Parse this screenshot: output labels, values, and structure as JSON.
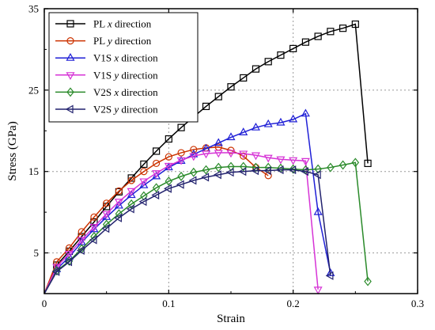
{
  "chart_data": {
    "type": "line",
    "xlabel": "Strain",
    "ylabel": "Stress (GPa)",
    "xlim": [
      0,
      0.3
    ],
    "ylim": [
      0,
      35
    ],
    "xticks": [
      0,
      0.1,
      0.2,
      0.3
    ],
    "xtick_labels": [
      "0",
      "0.1",
      "0.2",
      "0.3"
    ],
    "yticks": [
      5,
      15,
      25,
      35
    ],
    "ytick_labels": [
      "5",
      "15",
      "25",
      "35"
    ],
    "grid": "dotted",
    "grid_x": [
      0.1,
      0.2
    ],
    "grid_y": [
      5,
      15,
      25
    ],
    "legend_position": "top-left",
    "series": [
      {
        "name": "PL x direction",
        "name_parts": [
          "PL ",
          "x",
          " direction"
        ],
        "color": "#000000",
        "marker": "square",
        "x": [
          0,
          0.01,
          0.02,
          0.03,
          0.04,
          0.05,
          0.06,
          0.07,
          0.08,
          0.09,
          0.1,
          0.11,
          0.12,
          0.13,
          0.14,
          0.15,
          0.16,
          0.17,
          0.18,
          0.19,
          0.2,
          0.21,
          0.22,
          0.23,
          0.24,
          0.25,
          0.26
        ],
        "y": [
          0,
          3.5,
          5.2,
          7.0,
          8.8,
          10.7,
          12.5,
          14.2,
          15.9,
          17.5,
          19.0,
          20.4,
          21.7,
          23.0,
          24.2,
          25.4,
          26.5,
          27.6,
          28.5,
          29.3,
          30.1,
          30.9,
          31.6,
          32.2,
          32.6,
          33.1,
          16.0
        ]
      },
      {
        "name": "PL y direction",
        "name_parts": [
          "PL ",
          "y",
          " direction"
        ],
        "color": "#cc3300",
        "marker": "circle",
        "x": [
          0,
          0.01,
          0.02,
          0.03,
          0.04,
          0.05,
          0.06,
          0.07,
          0.08,
          0.09,
          0.1,
          0.11,
          0.12,
          0.13,
          0.14,
          0.15,
          0.16,
          0.17,
          0.18
        ],
        "y": [
          0,
          3.9,
          5.6,
          7.6,
          9.4,
          11.1,
          12.6,
          13.9,
          15.0,
          16.0,
          16.8,
          17.3,
          17.7,
          17.9,
          18.0,
          17.6,
          16.9,
          15.5,
          14.5
        ]
      },
      {
        "name": "V1S x direction",
        "name_parts": [
          "V1S ",
          "x",
          " direction"
        ],
        "color": "#1f1fd6",
        "marker": "triangle-up",
        "x": [
          0,
          0.01,
          0.02,
          0.03,
          0.04,
          0.05,
          0.06,
          0.07,
          0.08,
          0.09,
          0.1,
          0.11,
          0.12,
          0.13,
          0.14,
          0.15,
          0.16,
          0.17,
          0.18,
          0.19,
          0.2,
          0.21,
          0.22,
          0.23
        ],
        "y": [
          0,
          3.0,
          4.5,
          6.3,
          7.9,
          9.4,
          10.8,
          12.1,
          13.3,
          14.4,
          15.5,
          16.3,
          17.1,
          17.8,
          18.5,
          19.2,
          19.8,
          20.4,
          20.8,
          21.0,
          21.4,
          22.1,
          10.0,
          2.5
        ]
      },
      {
        "name": "V1S y direction",
        "name_parts": [
          "V1S ",
          "y",
          " direction"
        ],
        "color": "#d633d6",
        "marker": "triangle-down",
        "x": [
          0,
          0.01,
          0.02,
          0.03,
          0.04,
          0.05,
          0.06,
          0.07,
          0.08,
          0.09,
          0.1,
          0.11,
          0.12,
          0.13,
          0.14,
          0.15,
          0.16,
          0.17,
          0.18,
          0.19,
          0.2,
          0.21,
          0.22
        ],
        "y": [
          0,
          3.3,
          4.9,
          6.6,
          8.2,
          9.8,
          11.3,
          12.6,
          13.8,
          14.8,
          15.7,
          16.4,
          16.9,
          17.2,
          17.3,
          17.3,
          17.2,
          17.0,
          16.7,
          16.5,
          16.4,
          16.3,
          0.5
        ]
      },
      {
        "name": "V2S x direction",
        "name_parts": [
          "V2S ",
          "x",
          " direction"
        ],
        "color": "#2a8a2a",
        "marker": "diamond",
        "x": [
          0,
          0.01,
          0.02,
          0.03,
          0.04,
          0.05,
          0.06,
          0.07,
          0.08,
          0.09,
          0.1,
          0.11,
          0.12,
          0.13,
          0.14,
          0.15,
          0.16,
          0.17,
          0.18,
          0.19,
          0.2,
          0.21,
          0.22,
          0.23,
          0.24,
          0.25,
          0.26
        ],
        "y": [
          0,
          2.8,
          4.0,
          5.5,
          7.0,
          8.5,
          9.8,
          11.0,
          12.0,
          13.0,
          13.8,
          14.4,
          14.9,
          15.2,
          15.5,
          15.6,
          15.6,
          15.5,
          15.5,
          15.4,
          15.3,
          15.2,
          15.3,
          15.5,
          15.8,
          16.1,
          1.5
        ]
      },
      {
        "name": "V2S y direction",
        "name_parts": [
          "V2S ",
          "y",
          " direction"
        ],
        "color": "#22226e",
        "marker": "triangle-left",
        "x": [
          0,
          0.01,
          0.02,
          0.03,
          0.04,
          0.05,
          0.06,
          0.07,
          0.08,
          0.09,
          0.1,
          0.11,
          0.12,
          0.13,
          0.14,
          0.15,
          0.16,
          0.17,
          0.18,
          0.19,
          0.2,
          0.21,
          0.22,
          0.23
        ],
        "y": [
          0,
          2.7,
          3.9,
          5.3,
          6.6,
          8.0,
          9.3,
          10.4,
          11.3,
          12.1,
          12.9,
          13.4,
          13.9,
          14.3,
          14.6,
          14.9,
          15.0,
          15.1,
          15.1,
          15.2,
          15.2,
          15.0,
          14.6,
          2.2
        ]
      }
    ]
  }
}
